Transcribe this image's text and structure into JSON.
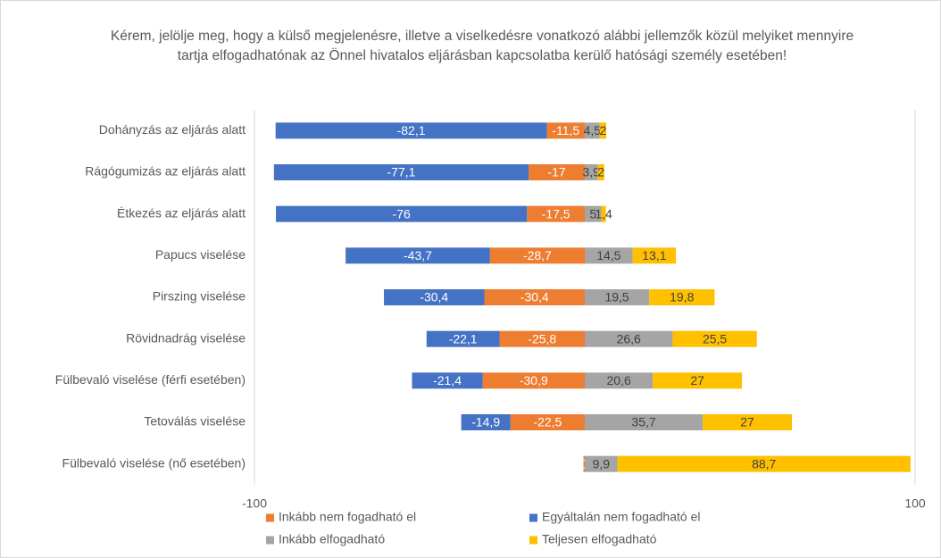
{
  "chart_data": {
    "type": "diverging_bar",
    "title": "Kérem, jelölje meg, hogy a külső megjelenésre, illetve a viselkedésre vonatkozó alábbi jellemzők közül melyiket mennyire tartja elfogadhatónak az Önnel hivatalos eljárásban kapcsolatba kerülő hatósági személy esetében!",
    "categories": [
      "Dohányzás az eljárás alatt",
      "Rágógumizás az eljárás alatt",
      "Étkezés az eljárás alatt",
      "Papucs viselése",
      "Pirszing viselése",
      "Rövidnadrág viselése",
      "Fülbevaló viselése (férfi esetében)",
      "Tetoválás viselése",
      "Fülbevaló viselése (nő esetében)"
    ],
    "series": [
      {
        "name": "Inkább nem fogadható el",
        "color": "#ed7d31",
        "values": [
          -11.5,
          -17,
          -17.5,
          -28.7,
          -30.4,
          -25.8,
          -30.9,
          -22.5,
          -0.4
        ],
        "value_labels": [
          "-11,5",
          "-17",
          "-17,5",
          "-28,7",
          "-30,4",
          "-25,8",
          "-30,9",
          "-22,5",
          "0"
        ]
      },
      {
        "name": "Egyáltalán nem fogadható el",
        "color": "#4472c4",
        "values": [
          -82.1,
          -77.1,
          -76,
          -43.7,
          -30.4,
          -22.1,
          -21.4,
          -14.9,
          null
        ],
        "value_labels": [
          "-82,1",
          "-77,1",
          "-76",
          "-43,7",
          "-30,4",
          "-22,1",
          "-21,4",
          "-14,9",
          null
        ]
      },
      {
        "name": "Inkább elfogadható",
        "color": "#a5a5a5",
        "values": [
          4.5,
          3.9,
          5,
          14.5,
          19.5,
          26.6,
          20.6,
          35.7,
          9.9
        ],
        "value_labels": [
          "4,5",
          "3,9",
          "5",
          "14,5",
          "19,5",
          "26,6",
          "20,6",
          "35,7",
          "9,9"
        ]
      },
      {
        "name": "Teljesen elfogadható",
        "color": "#ffc000",
        "values": [
          2,
          2,
          1.4,
          13.1,
          19.8,
          25.5,
          27,
          27,
          88.7
        ],
        "value_labels": [
          "2",
          "2",
          "1,4",
          "13,1",
          "19,8",
          "25,5",
          "27",
          "27",
          "88,7"
        ]
      }
    ],
    "xlim": [
      -100,
      100
    ],
    "xticks": [
      -100,
      100
    ],
    "grid": true
  }
}
